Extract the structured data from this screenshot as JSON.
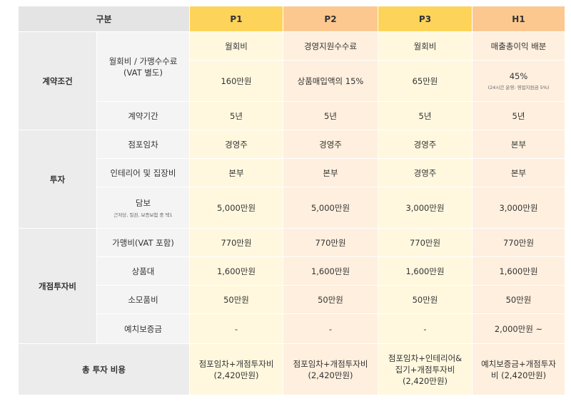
{
  "header": {
    "category": "구분",
    "p1": "P1",
    "p2": "P2",
    "p3": "P3",
    "h1": "H1"
  },
  "contract": {
    "group": "계약조건",
    "fee_label": "월회비 / 가맹수수료\n(VAT 별도)",
    "fee_type": [
      "월회비",
      "경영지원수수료",
      "월회비",
      "매출총이익 배분"
    ],
    "fee_value": [
      "160만원",
      "상품매입액의 15%",
      "65만원",
      "45%"
    ],
    "fee_note_h1": "(24시간 운영: 영업지원금 5%)",
    "period_label": "계약기간",
    "period": [
      "5년",
      "5년",
      "5년",
      "5년"
    ]
  },
  "investment": {
    "group": "투자",
    "store_label": "점포임차",
    "store": [
      "경영주",
      "경영주",
      "경영주",
      "본부"
    ],
    "interior_label": "인테리어 및 집장비",
    "interior": [
      "본부",
      "본부",
      "경영주",
      "본부"
    ],
    "collateral_label": "담보",
    "collateral_note": "근저당, 질권, 보증보험 중 택1",
    "collateral": [
      "5,000만원",
      "5,000만원",
      "3,000만원",
      "3,000만원"
    ]
  },
  "opening": {
    "group": "개점투자비",
    "join_label": "가맹비(VAT 포함)",
    "join": [
      "770만원",
      "770만원",
      "770만원",
      "770만원"
    ],
    "goods_label": "상품대",
    "goods": [
      "1,600만원",
      "1,600만원",
      "1,600만원",
      "1,600만원"
    ],
    "supplies_label": "소모품비",
    "supplies": [
      "50만원",
      "50만원",
      "50만원",
      "50만원"
    ],
    "deposit_label": "예치보증금",
    "deposit": [
      "-",
      "-",
      "-",
      "2,000만원 ~"
    ]
  },
  "total": {
    "label": "총 투자 비용",
    "values": [
      "점포임차+개점투자비\n(2,420만원)",
      "점포임차+개점투자비\n(2,420만원)",
      "점포임차+인테리어&\n집기+개점투자비\n(2,420만원)",
      "예치보증금+개점투자\n비 (2,420만원)"
    ]
  }
}
